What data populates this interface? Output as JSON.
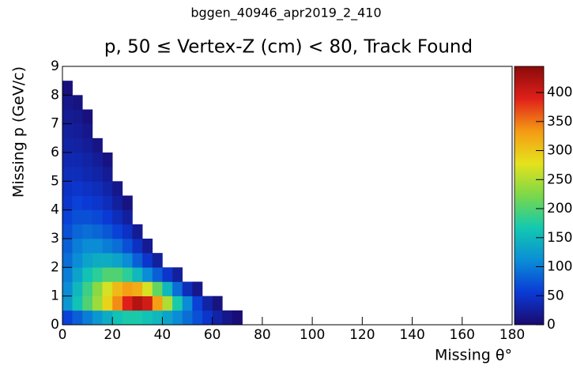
{
  "chart_data": {
    "type": "heatmap",
    "supertitle": "bggen_40946_apr2019_2_410",
    "title": "p, 50 ≤ Vertex-Z (cm) < 80, Track Found",
    "xlabel": "Missing θ°",
    "ylabel": "Missing p (GeV/c)",
    "xlim": [
      0,
      180
    ],
    "xticks": [
      0,
      20,
      40,
      60,
      80,
      100,
      120,
      140,
      160,
      180
    ],
    "ylim": [
      0,
      9
    ],
    "yticks": [
      0,
      1,
      2,
      3,
      4,
      5,
      6,
      7,
      8,
      9
    ],
    "zlim": [
      0,
      445
    ],
    "zticks": [
      0,
      50,
      100,
      150,
      200,
      250,
      300,
      350,
      400
    ],
    "colormap": [
      "#1a0a6e",
      "#0a3ad6",
      "#0a8ed6",
      "#12c9b0",
      "#7ad84a",
      "#e6e21c",
      "#f59a14",
      "#e0201a",
      "#8a0a0a"
    ],
    "xbins": [
      0,
      4,
      8,
      12,
      16,
      20,
      24,
      28,
      32,
      36,
      40,
      44,
      48,
      52,
      56,
      60,
      64,
      68,
      72
    ],
    "ybins": [
      0,
      0.5,
      1,
      1.5,
      2,
      2.5,
      3,
      3.5,
      4,
      4.5,
      5,
      5.5,
      6,
      6.5,
      7,
      7.5,
      8,
      8.5,
      9
    ],
    "z": [
      [
        60,
        80,
        100,
        120,
        140,
        160,
        170,
        170,
        160,
        150,
        130,
        110,
        90,
        70,
        50,
        30,
        15,
        5
      ],
      [
        120,
        160,
        200,
        240,
        290,
        340,
        390,
        420,
        400,
        330,
        250,
        170,
        110,
        60,
        30,
        10,
        0,
        0
      ],
      [
        110,
        150,
        190,
        230,
        270,
        310,
        330,
        320,
        270,
        210,
        150,
        90,
        40,
        15,
        0,
        0,
        0,
        0
      ],
      [
        100,
        130,
        160,
        180,
        200,
        200,
        180,
        150,
        110,
        80,
        50,
        25,
        0,
        0,
        0,
        0,
        0,
        0
      ],
      [
        90,
        110,
        130,
        140,
        140,
        130,
        110,
        80,
        50,
        25,
        0,
        0,
        0,
        0,
        0,
        0,
        0,
        0
      ],
      [
        80,
        100,
        110,
        110,
        100,
        90,
        70,
        45,
        20,
        0,
        0,
        0,
        0,
        0,
        0,
        0,
        0,
        0
      ],
      [
        70,
        85,
        90,
        85,
        75,
        60,
        45,
        20,
        0,
        0,
        0,
        0,
        0,
        0,
        0,
        0,
        0,
        0
      ],
      [
        60,
        70,
        70,
        65,
        55,
        40,
        25,
        0,
        0,
        0,
        0,
        0,
        0,
        0,
        0,
        0,
        0,
        0
      ],
      [
        50,
        60,
        55,
        50,
        40,
        25,
        10,
        0,
        0,
        0,
        0,
        0,
        0,
        0,
        0,
        0,
        0,
        0
      ],
      [
        45,
        50,
        45,
        40,
        30,
        15,
        0,
        0,
        0,
        0,
        0,
        0,
        0,
        0,
        0,
        0,
        0,
        0
      ],
      [
        40,
        40,
        35,
        30,
        20,
        0,
        0,
        0,
        0,
        0,
        0,
        0,
        0,
        0,
        0,
        0,
        0,
        0
      ],
      [
        35,
        35,
        30,
        22,
        10,
        0,
        0,
        0,
        0,
        0,
        0,
        0,
        0,
        0,
        0,
        0,
        0,
        0
      ],
      [
        30,
        28,
        22,
        12,
        0,
        0,
        0,
        0,
        0,
        0,
        0,
        0,
        0,
        0,
        0,
        0,
        0,
        0
      ],
      [
        25,
        22,
        15,
        0,
        0,
        0,
        0,
        0,
        0,
        0,
        0,
        0,
        0,
        0,
        0,
        0,
        0,
        0
      ],
      [
        20,
        17,
        8,
        0,
        0,
        0,
        0,
        0,
        0,
        0,
        0,
        0,
        0,
        0,
        0,
        0,
        0,
        0
      ],
      [
        15,
        10,
        0,
        0,
        0,
        0,
        0,
        0,
        0,
        0,
        0,
        0,
        0,
        0,
        0,
        0,
        0,
        0
      ],
      [
        8,
        0,
        0,
        0,
        0,
        0,
        0,
        0,
        0,
        0,
        0,
        0,
        0,
        0,
        0,
        0,
        0,
        0
      ],
      [
        0,
        0,
        0,
        0,
        0,
        0,
        0,
        0,
        0,
        0,
        0,
        0,
        0,
        0,
        0,
        0,
        0,
        0
      ]
    ]
  }
}
